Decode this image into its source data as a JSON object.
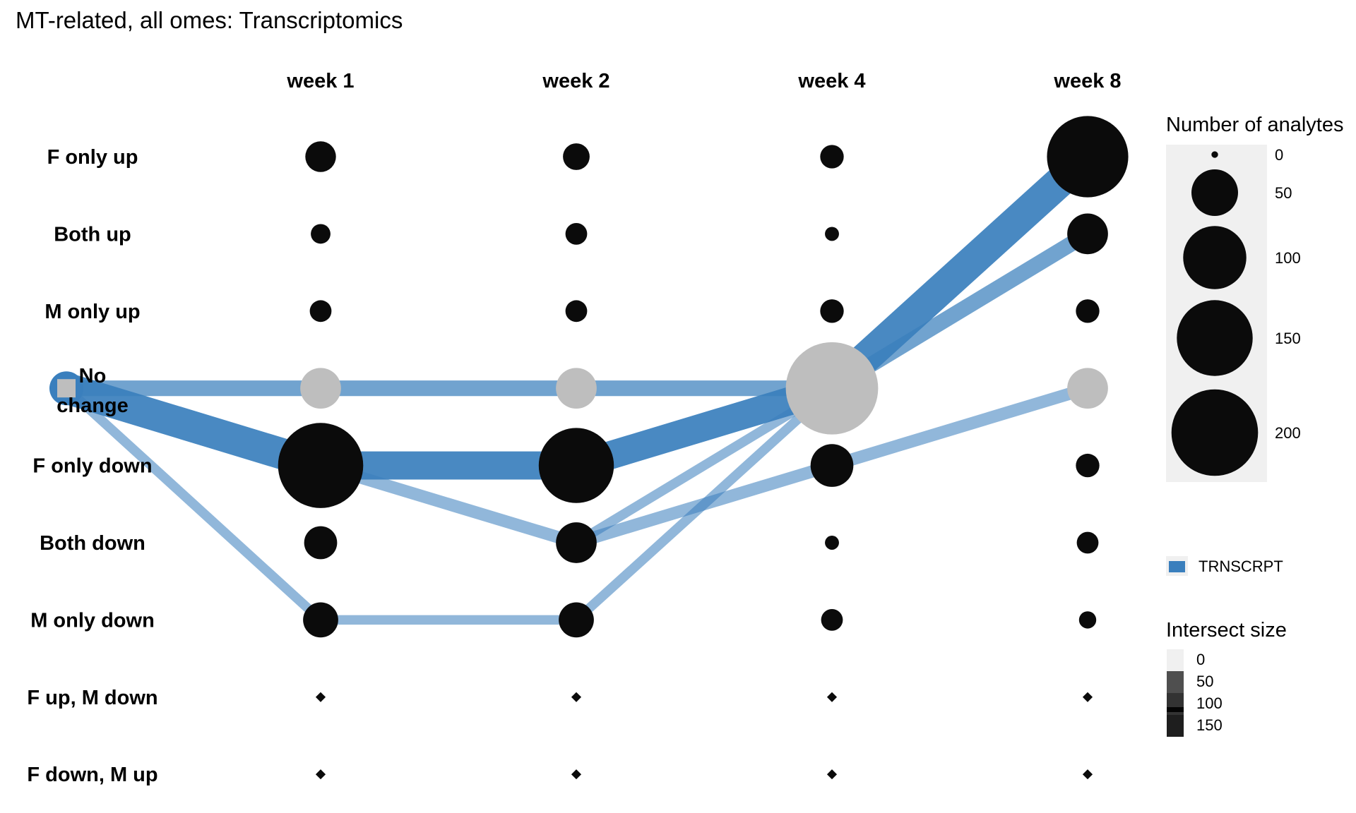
{
  "chart_data": {
    "type": "alluvial-dot",
    "title": "MT-related, all omes: Transcriptomics",
    "columns": [
      "week 1",
      "week 2",
      "week 4",
      "week 8"
    ],
    "rows": [
      "F only up",
      "Both up",
      "M only up",
      "No change",
      "F only down",
      "Both down",
      "M only down",
      "F up, M down",
      "F down, M up"
    ],
    "no_change_row": "No change",
    "baseline_row": "No change",
    "node_counts": {
      "week 1": [
        20,
        6,
        8,
        40,
        210,
        24,
        28,
        0,
        0
      ],
      "week 2": [
        14,
        8,
        8,
        40,
        160,
        40,
        28,
        0,
        0
      ],
      "week 4": [
        10,
        2,
        10,
        250,
        45,
        2,
        8,
        0,
        0
      ],
      "week 8": [
        190,
        40,
        10,
        40,
        10,
        8,
        4,
        0,
        0
      ]
    },
    "flows": [
      {
        "from": [
          "baseline",
          "No change"
        ],
        "to": [
          "week 1",
          "No change"
        ],
        "size": 40
      },
      {
        "from": [
          "baseline",
          "No change"
        ],
        "to": [
          "week 1",
          "F only down"
        ],
        "size": 160
      },
      {
        "from": [
          "baseline",
          "No change"
        ],
        "to": [
          "week 1",
          "M only down"
        ],
        "size": 15
      },
      {
        "from": [
          "week 1",
          "No change"
        ],
        "to": [
          "week 2",
          "No change"
        ],
        "size": 40
      },
      {
        "from": [
          "week 1",
          "F only down"
        ],
        "to": [
          "week 2",
          "F only down"
        ],
        "size": 130
      },
      {
        "from": [
          "week 1",
          "F only down"
        ],
        "to": [
          "week 2",
          "Both down"
        ],
        "size": 25
      },
      {
        "from": [
          "week 1",
          "M only down"
        ],
        "to": [
          "week 2",
          "M only down"
        ],
        "size": 15
      },
      {
        "from": [
          "week 2",
          "No change"
        ],
        "to": [
          "week 4",
          "No change"
        ],
        "size": 40
      },
      {
        "from": [
          "week 2",
          "F only down"
        ],
        "to": [
          "week 4",
          "No change"
        ],
        "size": 130
      },
      {
        "from": [
          "week 2",
          "Both down"
        ],
        "to": [
          "week 4",
          "No change"
        ],
        "size": 15
      },
      {
        "from": [
          "week 2",
          "Both down"
        ],
        "to": [
          "week 4",
          "F only down"
        ],
        "size": 25
      },
      {
        "from": [
          "week 2",
          "M only down"
        ],
        "to": [
          "week 4",
          "No change"
        ],
        "size": 15
      },
      {
        "from": [
          "week 4",
          "No change"
        ],
        "to": [
          "week 8",
          "F only up"
        ],
        "size": 160
      },
      {
        "from": [
          "week 4",
          "No change"
        ],
        "to": [
          "week 8",
          "Both up"
        ],
        "size": 40
      },
      {
        "from": [
          "week 4",
          "F only down"
        ],
        "to": [
          "week 8",
          "No change"
        ],
        "size": 25
      }
    ],
    "series": [
      {
        "name": "TRNSCRPT",
        "color": "#3a7fbd"
      }
    ],
    "legend": {
      "size_title": "Number of analytes",
      "size_values": [
        "0",
        "50",
        "100",
        "150",
        "200"
      ],
      "series_label": "TRNSCRPT",
      "intersect_title": "Intersect size",
      "intersect_values": [
        "0",
        "50",
        "100",
        "150"
      ],
      "placement": "right"
    },
    "colors": {
      "node": "#0b0b0b",
      "no_change_node": "#bebebe",
      "flow": "#3a7fbd",
      "legend_panel": "#f0f0f0"
    }
  }
}
